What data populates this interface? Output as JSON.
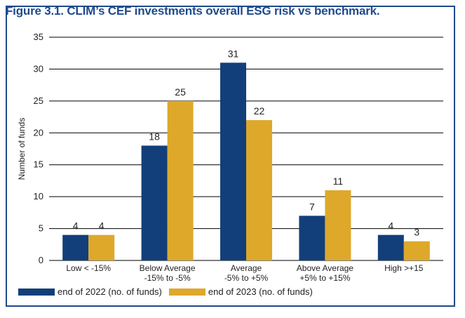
{
  "title": "Figure 3.1. CLIM’s CEF investments overall ESG risk vs benchmark.",
  "colors": {
    "series_2022": "#123f7a",
    "series_2023": "#dea82a",
    "title": "#1f4a8c",
    "border": "#1f4a8c"
  },
  "chart_data": {
    "type": "bar",
    "title": "Figure 3.1. CLIM’s CEF investments overall ESG risk vs benchmark.",
    "xlabel": "",
    "ylabel": "Number of funds",
    "ylim": [
      0,
      35
    ],
    "yticks": [
      0,
      5,
      10,
      15,
      20,
      25,
      30,
      35
    ],
    "grid": true,
    "legend_position": "bottom-left",
    "categories": [
      [
        "Low < -15%"
      ],
      [
        "Below Average",
        "-15% to -5%"
      ],
      [
        "Average",
        "-5% to +5%"
      ],
      [
        "Above Average",
        "+5% to +15%"
      ],
      [
        "High >+15"
      ]
    ],
    "series": [
      {
        "name": "end of 2022 (no. of funds)",
        "values": [
          4,
          18,
          31,
          7,
          4
        ]
      },
      {
        "name": "end of 2023 (no. of funds)",
        "values": [
          4,
          25,
          22,
          11,
          3
        ]
      }
    ]
  }
}
